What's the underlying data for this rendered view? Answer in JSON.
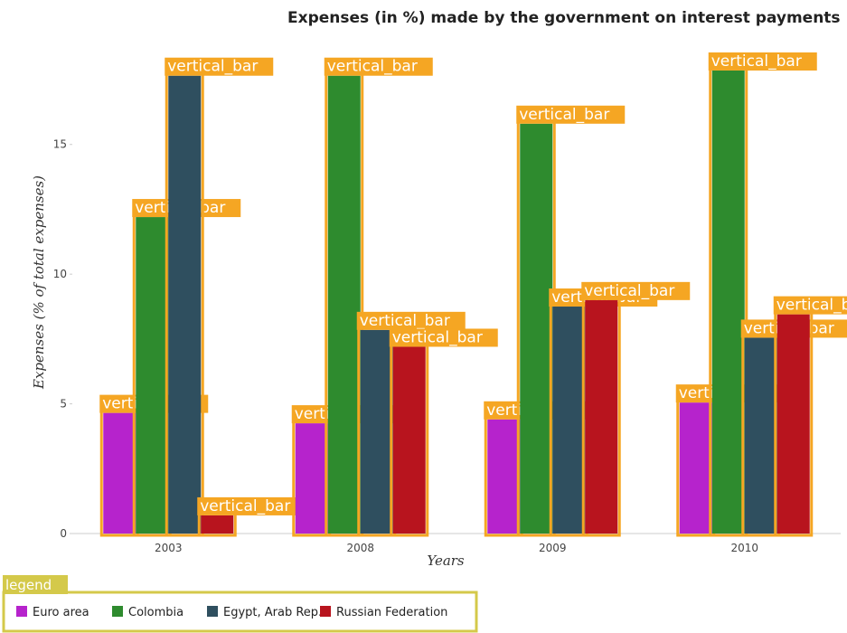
{
  "chart_data": {
    "type": "bar",
    "title": "Expenses (in %) made by the government on interest payments",
    "xlabel": "Years",
    "ylabel": "Expenses (% of total expenses)",
    "categories": [
      "2003",
      "2008",
      "2009",
      "2010"
    ],
    "ylim": [
      0,
      19
    ],
    "yticks": [
      0,
      5,
      10,
      15
    ],
    "series": [
      {
        "name": "Euro area",
        "color": "#b623cc",
        "values": [
          4.65,
          4.25,
          4.4,
          5.05
        ]
      },
      {
        "name": "Colombia",
        "color": "#2e8b2e",
        "values": [
          12.2,
          17.65,
          15.8,
          17.85
        ]
      },
      {
        "name": "Egypt, Arab Rep.",
        "color": "#2f4f5f",
        "values": [
          17.65,
          7.85,
          8.75,
          7.55
        ]
      },
      {
        "name": "Russian Federation",
        "color": "#b8141e",
        "values": [
          0.7,
          7.2,
          9.0,
          8.45
        ]
      }
    ],
    "annotation_label": "vertical_bar",
    "annotation_color": "#f5a623",
    "legend_label": "legend",
    "legend_position": "bottom",
    "grid": false
  }
}
